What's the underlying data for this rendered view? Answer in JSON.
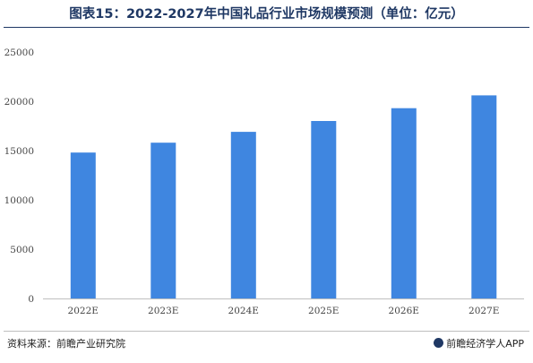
{
  "title": "图表15：2022-2027年中国礼品行业市场规模预测（单位：亿元）",
  "source": "资料来源：前瞻产业研究院",
  "brand": "前瞻经济学人APP",
  "colors": {
    "bar": "#3f86e0",
    "title": "#1f3864"
  },
  "chart_data": {
    "type": "bar",
    "categories": [
      "2022E",
      "2023E",
      "2024E",
      "2025E",
      "2026E",
      "2027E"
    ],
    "values": [
      14800,
      15800,
      16900,
      18000,
      19300,
      20600
    ],
    "ylim": [
      0,
      25000
    ],
    "yticks": [
      0,
      5000,
      10000,
      15000,
      20000,
      25000
    ],
    "grid": false,
    "legend": "none"
  }
}
